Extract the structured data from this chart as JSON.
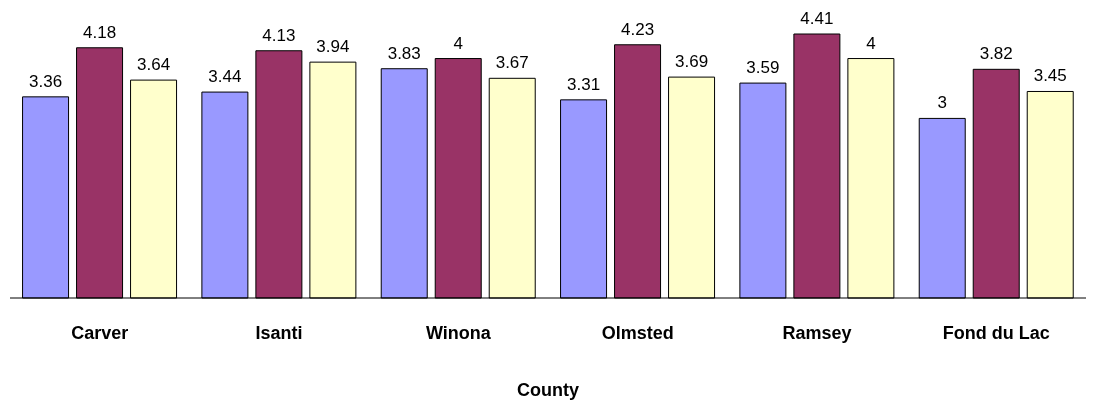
{
  "chart_data": {
    "type": "bar",
    "xlabel": "County",
    "categories": [
      "Carver",
      "Isanti",
      "Winona",
      "Olmsted",
      "Ramsey",
      "Fond du Lac"
    ],
    "series": [
      {
        "color": "#9999ff",
        "values": [
          3.36,
          3.44,
          3.83,
          3.31,
          3.59,
          3
        ]
      },
      {
        "color": "#993366",
        "values": [
          4.18,
          4.13,
          4,
          4.23,
          4.41,
          3.82
        ]
      },
      {
        "color": "#ffffcc",
        "values": [
          3.64,
          3.94,
          3.67,
          3.69,
          4,
          3.45
        ]
      }
    ],
    "data_labels": true,
    "grid": false,
    "legend": false
  }
}
